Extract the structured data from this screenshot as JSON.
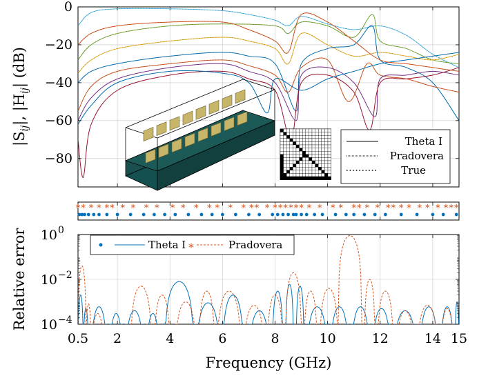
{
  "chart_data": [
    {
      "type": "line",
      "panel": "top",
      "ylabel_parts": [
        "|S",
        "ij",
        "|, |H",
        "ij",
        "| (dB)"
      ],
      "xlim": [
        0.5,
        15
      ],
      "ylim": [
        -95,
        0
      ],
      "y_ticks": [
        0,
        -20,
        -40,
        -60,
        -80
      ],
      "y_tick_labels": [
        "0",
        "−20",
        "−40",
        "−60",
        "−80"
      ],
      "grid": true,
      "legend_position": "bottom-right",
      "legend": [
        {
          "label": "Theta I",
          "style": "solid"
        },
        {
          "label": "Pradovera",
          "style": "dotted-fine"
        },
        {
          "label": "True",
          "style": "dotted"
        }
      ],
      "curve_colors": [
        "#0072bd",
        "#d95319",
        "#edb120",
        "#7e2f8e",
        "#77ac30",
        "#4dbeee",
        "#a2142f"
      ],
      "series": [
        {
          "color": "#4dbeee",
          "points": [
            [
              0.5,
              -10
            ],
            [
              1,
              -3
            ],
            [
              2,
              -1
            ],
            [
              4,
              -1
            ],
            [
              6,
              -2
            ],
            [
              7,
              -4
            ],
            [
              8,
              -7
            ],
            [
              8.5,
              -10
            ],
            [
              9,
              -5
            ],
            [
              10,
              -9
            ],
            [
              11,
              -12
            ],
            [
              12,
              -10
            ],
            [
              13,
              -15
            ],
            [
              14,
              -25
            ],
            [
              15,
              -32
            ]
          ]
        },
        {
          "color": "#77ac30",
          "points": [
            [
              0.5,
              -28
            ],
            [
              1,
              -20
            ],
            [
              2,
              -14
            ],
            [
              4,
              -10
            ],
            [
              6,
              -9
            ],
            [
              8,
              -10
            ],
            [
              8.5,
              -14
            ],
            [
              9,
              -8
            ],
            [
              10,
              -10
            ],
            [
              11,
              -16
            ],
            [
              11.7,
              -4
            ],
            [
              12,
              -18
            ],
            [
              13,
              -22
            ],
            [
              14,
              -28
            ],
            [
              15,
              -30
            ]
          ]
        },
        {
          "color": "#edb120",
          "points": [
            [
              0.5,
              -35
            ],
            [
              1,
              -28
            ],
            [
              2,
              -22
            ],
            [
              4,
              -18
            ],
            [
              6,
              -16
            ],
            [
              7,
              -18
            ],
            [
              8,
              -22
            ],
            [
              8.5,
              -30
            ],
            [
              9,
              -14
            ],
            [
              10,
              -20
            ],
            [
              11,
              -26
            ],
            [
              12,
              -24
            ],
            [
              13,
              -26
            ],
            [
              14,
              -28
            ],
            [
              15,
              -25
            ]
          ]
        },
        {
          "color": "#0072bd",
          "points": [
            [
              0.5,
              -40
            ],
            [
              1,
              -34
            ],
            [
              2,
              -30
            ],
            [
              4,
              -26
            ],
            [
              6,
              -24
            ],
            [
              7,
              -26
            ],
            [
              8,
              -30
            ],
            [
              8.8,
              -55
            ],
            [
              9,
              -30
            ],
            [
              10,
              -22
            ],
            [
              11,
              -20
            ],
            [
              11.7,
              -10
            ],
            [
              12,
              -28
            ],
            [
              13,
              -32
            ],
            [
              14,
              -40
            ],
            [
              15,
              -60
            ]
          ]
        },
        {
          "color": "#d95319",
          "points": [
            [
              0.5,
              -55
            ],
            [
              1,
              -42
            ],
            [
              2,
              -34
            ],
            [
              4,
              -30
            ],
            [
              6,
              -28
            ],
            [
              7,
              -31
            ],
            [
              8,
              -36
            ],
            [
              8.5,
              -45
            ],
            [
              9,
              -32
            ],
            [
              10,
              -28
            ],
            [
              10.8,
              -50
            ],
            [
              11.5,
              -30
            ],
            [
              12,
              -36
            ],
            [
              13,
              -38
            ],
            [
              14,
              -42
            ],
            [
              15,
              -45
            ]
          ]
        },
        {
          "color": "#7e2f8e",
          "points": [
            [
              0.5,
              -60
            ],
            [
              1,
              -48
            ],
            [
              2,
              -38
            ],
            [
              4,
              -32
            ],
            [
              6,
              -30
            ],
            [
              7,
              -34
            ],
            [
              8,
              -40
            ],
            [
              8.8,
              -60
            ],
            [
              9,
              -36
            ],
            [
              10,
              -32
            ],
            [
              11,
              -40
            ],
            [
              11.8,
              -58
            ],
            [
              12,
              -38
            ],
            [
              13,
              -36
            ],
            [
              14,
              -34
            ],
            [
              15,
              -36
            ]
          ]
        },
        {
          "color": "#a2142f",
          "points": [
            [
              0.5,
              -70
            ],
            [
              0.7,
              -90
            ],
            [
              1,
              -62
            ],
            [
              2,
              -44
            ],
            [
              4,
              -36
            ],
            [
              6,
              -34
            ],
            [
              7,
              -38
            ],
            [
              8,
              -44
            ],
            [
              8.6,
              -70
            ],
            [
              9,
              -40
            ],
            [
              10,
              -36
            ],
            [
              11,
              -45
            ],
            [
              11.6,
              -65
            ],
            [
              12,
              -40
            ],
            [
              13,
              -38
            ],
            [
              14,
              -36
            ],
            [
              15,
              -32
            ]
          ]
        },
        {
          "color": "#0072bd",
          "points": [
            [
              0.5,
              -62
            ],
            [
              1,
              -52
            ],
            [
              2,
              -40
            ],
            [
              4,
              -34
            ],
            [
              6,
              -35
            ],
            [
              7,
              -40
            ],
            [
              7.7,
              -56
            ],
            [
              8,
              -38
            ],
            [
              9,
              -44
            ],
            [
              10,
              -38
            ],
            [
              11,
              -34
            ],
            [
              12,
              -30
            ],
            [
              13,
              -28
            ],
            [
              14,
              -26
            ],
            [
              15,
              -24
            ]
          ]
        },
        {
          "color": "#d95319",
          "points": [
            [
              0.5,
              -20
            ],
            [
              1,
              -14
            ],
            [
              2,
              -10
            ],
            [
              4,
              -8
            ],
            [
              6,
              -8
            ],
            [
              7,
              -12
            ],
            [
              8,
              -18
            ],
            [
              8.5,
              -24
            ],
            [
              9,
              -4
            ],
            [
              10,
              -8
            ],
            [
              11,
              -18
            ],
            [
              12,
              -28
            ],
            [
              13,
              -30
            ],
            [
              14,
              -32
            ],
            [
              15,
              -34
            ]
          ]
        }
      ]
    },
    {
      "type": "scatter",
      "panel": "middle",
      "description_note": "sample frequencies strip",
      "series": [
        {
          "name": "Theta I",
          "color": "#0072bd",
          "marker": "dot",
          "x": [
            0.55,
            0.65,
            0.75,
            0.9,
            1.1,
            1.3,
            1.6,
            2.0,
            2.5,
            3.0,
            3.4,
            3.8,
            4.2,
            4.7,
            5.2,
            5.6,
            6.0,
            6.5,
            7.0,
            7.4,
            7.9,
            8.1,
            8.3,
            8.5,
            8.7,
            8.8,
            9.0,
            9.2,
            9.5,
            9.8,
            10.3,
            10.7,
            11.0,
            11.4,
            11.8,
            12.2,
            12.8,
            13.4,
            14.0,
            14.4,
            14.9
          ]
        },
        {
          "name": "Pradovera",
          "color": "#d95319",
          "marker": "asterisk",
          "x": [
            0.5,
            0.7,
            1.0,
            1.3,
            1.6,
            1.8,
            2.2,
            2.6,
            3.1,
            3.5,
            4.1,
            4.5,
            5.0,
            5.5,
            5.8,
            6.3,
            6.8,
            7.1,
            7.3,
            7.7,
            8.0,
            8.2,
            8.4,
            8.6,
            8.8,
            9.0,
            9.3,
            9.7,
            10.2,
            10.5,
            11.0,
            11.2,
            11.5,
            11.9,
            12.3,
            12.5,
            12.8,
            13.1,
            13.5,
            13.8,
            14.2,
            14.5,
            14.7,
            14.9
          ]
        }
      ]
    },
    {
      "type": "line",
      "panel": "bottom",
      "yscale": "log",
      "ylabel": "Relative error",
      "xlabel": "Frequency (GHz)",
      "xlim": [
        0.5,
        15
      ],
      "ylim": [
        0.0001,
        1
      ],
      "x_ticks": [
        0.5,
        2,
        4,
        6,
        8,
        10,
        12,
        14,
        15
      ],
      "x_tick_labels": [
        "0.5",
        "2",
        "4",
        "6",
        "8",
        "10",
        "12",
        "14",
        "15"
      ],
      "y_ticks": [
        1,
        0.01,
        0.0001
      ],
      "y_tick_labels": [
        {
          "base": "10",
          "exp": "0"
        },
        {
          "base": "10",
          "exp": "−2"
        },
        {
          "base": "10",
          "exp": "−4"
        }
      ],
      "grid": true,
      "legend_position": "top-left",
      "series": [
        {
          "name": "Theta I",
          "color": "#0072bd",
          "style": "solid",
          "lobes": [
            [
              0.5,
              0.7,
              0.002
            ],
            [
              0.7,
              0.9,
              0.0005
            ],
            [
              1.0,
              1.6,
              0.0006
            ],
            [
              1.7,
              2.2,
              0.0003
            ],
            [
              2.3,
              3.0,
              0.0004
            ],
            [
              3.1,
              3.6,
              0.0003
            ],
            [
              3.8,
              4.9,
              0.008
            ],
            [
              5.0,
              5.9,
              0.0009
            ],
            [
              6.0,
              6.8,
              0.002
            ],
            [
              7.0,
              7.8,
              0.0004
            ],
            [
              7.9,
              8.3,
              0.003
            ],
            [
              8.4,
              8.7,
              0.006
            ],
            [
              8.8,
              9.1,
              0.005
            ],
            [
              9.2,
              10.0,
              0.0006
            ],
            [
              10.1,
              10.8,
              0.0006
            ],
            [
              10.9,
              11.6,
              0.0006
            ],
            [
              11.7,
              12.4,
              0.0005
            ],
            [
              12.5,
              13.4,
              0.0004
            ],
            [
              13.5,
              14.2,
              0.0006
            ],
            [
              14.3,
              14.8,
              0.0006
            ],
            [
              14.85,
              15.0,
              0.001
            ]
          ]
        },
        {
          "name": "Pradovera",
          "color": "#d95319",
          "style": "dashed",
          "lobes": [
            [
              0.5,
              0.8,
              0.04
            ],
            [
              0.8,
              1.0,
              0.0008
            ],
            [
              1.0,
              1.5,
              0.0003
            ],
            [
              2.5,
              3.3,
              0.005
            ],
            [
              3.4,
              4.0,
              0.002
            ],
            [
              4.2,
              5.0,
              0.001
            ],
            [
              5.1,
              5.7,
              0.003
            ],
            [
              5.8,
              6.7,
              0.003
            ],
            [
              6.8,
              7.6,
              0.0007
            ],
            [
              7.7,
              8.3,
              0.002
            ],
            [
              8.4,
              9.0,
              0.02
            ],
            [
              9.1,
              9.6,
              0.003
            ],
            [
              9.7,
              10.4,
              0.004
            ],
            [
              10.4,
              11.3,
              0.9
            ],
            [
              11.4,
              11.8,
              0.01
            ],
            [
              11.9,
              12.5,
              0.003
            ],
            [
              12.6,
              13.3,
              0.0004
            ],
            [
              13.4,
              14.2,
              0.0007
            ],
            [
              14.3,
              14.8,
              0.0005
            ]
          ]
        }
      ]
    }
  ]
}
